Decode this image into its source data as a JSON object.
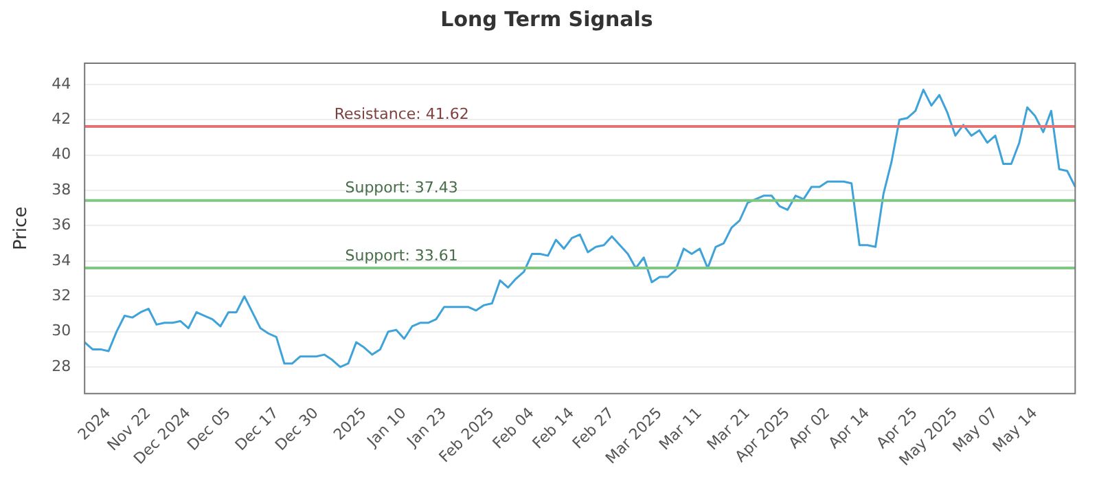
{
  "chart_data": {
    "type": "line",
    "title": "Long Term Signals",
    "ylabel": "Price",
    "categories": [
      null,
      null,
      null,
      "2024",
      null,
      null,
      null,
      null,
      "Nov 22",
      null,
      null,
      null,
      null,
      "Dec 2024",
      null,
      null,
      null,
      null,
      "Dec 05",
      null,
      null,
      null,
      null,
      null,
      "Dec 17",
      null,
      null,
      null,
      null,
      "Dec 30",
      null,
      null,
      null,
      null,
      null,
      "2025",
      null,
      null,
      null,
      null,
      "Jan 10",
      null,
      null,
      null,
      null,
      "Jan 23",
      null,
      null,
      null,
      null,
      null,
      "Feb 2025",
      null,
      null,
      null,
      null,
      "Feb 04",
      null,
      null,
      null,
      null,
      "Feb 14",
      null,
      null,
      null,
      null,
      "Feb 27",
      null,
      null,
      null,
      null,
      null,
      "Mar 2025",
      null,
      null,
      null,
      null,
      "Mar 11",
      null,
      null,
      null,
      null,
      null,
      "Mar 21",
      null,
      null,
      null,
      null,
      "Apr 2025",
      null,
      null,
      null,
      null,
      "Apr 02",
      null,
      null,
      null,
      null,
      "Apr 14",
      null,
      null,
      null,
      null,
      null,
      "Apr 25",
      null,
      null,
      null,
      null,
      "May 2025",
      null,
      null,
      null,
      null,
      "May 07",
      null,
      null,
      null,
      null,
      "May 14",
      null,
      null,
      null,
      null,
      null
    ],
    "series": [
      {
        "color": "#3fa3d9",
        "values": [
          29.4,
          29.0,
          29.0,
          28.9,
          30.0,
          30.9,
          30.8,
          31.1,
          31.3,
          30.4,
          30.5,
          30.5,
          30.6,
          30.2,
          31.1,
          30.9,
          30.7,
          30.3,
          31.1,
          31.1,
          32.0,
          31.1,
          30.2,
          29.9,
          29.7,
          28.2,
          28.2,
          28.6,
          28.6,
          28.6,
          28.7,
          28.4,
          28.0,
          28.2,
          29.4,
          29.1,
          28.7,
          29.0,
          30.0,
          30.1,
          29.6,
          30.3,
          30.5,
          30.5,
          30.7,
          31.4,
          31.4,
          31.4,
          31.4,
          31.2,
          31.5,
          31.6,
          32.9,
          32.5,
          33.0,
          33.4,
          34.4,
          34.4,
          34.3,
          35.2,
          34.7,
          35.3,
          35.5,
          34.5,
          34.8,
          34.9,
          35.4,
          34.9,
          34.4,
          33.6,
          34.2,
          32.8,
          33.1,
          33.1,
          33.5,
          34.7,
          34.4,
          34.7,
          33.6,
          34.8,
          35.0,
          35.9,
          36.3,
          37.3,
          37.5,
          37.7,
          37.7,
          37.1,
          36.9,
          37.7,
          37.5,
          38.2,
          38.2,
          38.5,
          38.5,
          38.5,
          38.4,
          34.9,
          34.9,
          34.8,
          37.8,
          39.6,
          42.0,
          42.1,
          42.5,
          43.7,
          42.8,
          43.4,
          42.4,
          41.1,
          41.7,
          41.1,
          41.4,
          40.7,
          41.1,
          39.5,
          39.5,
          40.7,
          42.7,
          42.2,
          41.3,
          42.5,
          39.2,
          39.1,
          38.2
        ]
      }
    ],
    "ylim": [
      26.5,
      45.2
    ],
    "yticks": [
      28,
      30,
      32,
      34,
      36,
      38,
      40,
      42,
      44
    ],
    "ref_lines": [
      {
        "axis": "y",
        "value": 41.62,
        "label": "Resistance: 41.62",
        "color": "#e57373"
      },
      {
        "axis": "y",
        "value": 37.43,
        "label": "Support: 37.43",
        "color": "#81c784"
      },
      {
        "axis": "y",
        "value": 33.61,
        "label": "Support: 33.61",
        "color": "#81c784"
      }
    ],
    "grid": "y",
    "legend": false,
    "marker": "none",
    "line_style": "solid"
  }
}
